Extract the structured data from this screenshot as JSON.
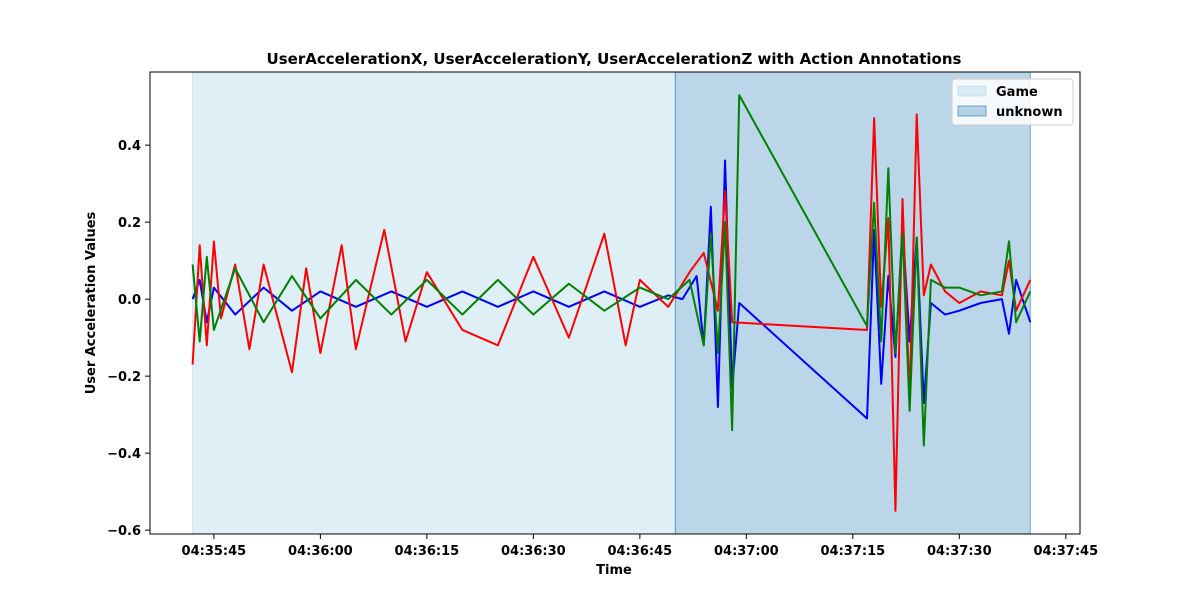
{
  "chart_data": {
    "type": "line",
    "title": "UserAccelerationX, UserAccelerationY, UserAccelerationZ with Action Annotations",
    "xlabel": "Time",
    "ylabel": "User Acceleration Values",
    "x_ticks": [
      "04:35:45",
      "04:36:00",
      "04:36:15",
      "04:36:30",
      "04:36:45",
      "04:37:00",
      "04:37:15",
      "04:37:30",
      "04:37:45"
    ],
    "y_ticks": [
      "0.4",
      "0.2",
      "0.0",
      "−0.2",
      "−0.4",
      "−0.6"
    ],
    "xlim": [
      "04:35:36",
      "04:37:47"
    ],
    "ylim": [
      -0.61,
      0.59
    ],
    "grid": false,
    "legend_position": "top-right",
    "legend": [
      {
        "label": "Game",
        "color": "#add8e6",
        "alpha": 0.4
      },
      {
        "label": "unknown",
        "color": "#1f77b4",
        "alpha": 0.3
      }
    ],
    "annotations": [
      {
        "label": "Game",
        "start": "04:35:42",
        "end": "04:36:50"
      },
      {
        "label": "unknown",
        "start": "04:36:50",
        "end": "04:37:40"
      }
    ],
    "series": [
      {
        "color": "#0000ff",
        "points": [
          [
            "04:35:42",
            0.0
          ],
          [
            "04:35:43",
            0.05
          ],
          [
            "04:35:44",
            -0.06
          ],
          [
            "04:35:45",
            0.03
          ],
          [
            "04:35:48",
            -0.04
          ],
          [
            "04:35:52",
            0.03
          ],
          [
            "04:35:56",
            -0.03
          ],
          [
            "04:36:00",
            0.02
          ],
          [
            "04:36:05",
            -0.02
          ],
          [
            "04:36:10",
            0.02
          ],
          [
            "04:36:15",
            -0.02
          ],
          [
            "04:36:20",
            0.02
          ],
          [
            "04:36:25",
            -0.02
          ],
          [
            "04:36:30",
            0.02
          ],
          [
            "04:36:35",
            -0.02
          ],
          [
            "04:36:40",
            0.02
          ],
          [
            "04:36:45",
            -0.02
          ],
          [
            "04:36:49",
            0.01
          ],
          [
            "04:36:51",
            0.0
          ],
          [
            "04:36:53",
            0.06
          ],
          [
            "04:36:54",
            -0.12
          ],
          [
            "04:36:55",
            0.24
          ],
          [
            "04:36:56",
            -0.28
          ],
          [
            "04:36:57",
            0.36
          ],
          [
            "04:36:58",
            -0.23
          ],
          [
            "04:36:59",
            -0.01
          ],
          [
            "04:37:17",
            -0.31
          ],
          [
            "04:37:18",
            0.18
          ],
          [
            "04:37:19",
            -0.22
          ],
          [
            "04:37:20",
            0.06
          ],
          [
            "04:37:21",
            -0.15
          ],
          [
            "04:37:22",
            0.19
          ],
          [
            "04:37:23",
            -0.11
          ],
          [
            "04:37:24",
            0.16
          ],
          [
            "04:37:25",
            -0.27
          ],
          [
            "04:37:26",
            -0.01
          ],
          [
            "04:37:28",
            -0.04
          ],
          [
            "04:37:30",
            -0.03
          ],
          [
            "04:37:33",
            -0.01
          ],
          [
            "04:37:36",
            0.0
          ],
          [
            "04:37:37",
            -0.09
          ],
          [
            "04:37:38",
            0.05
          ],
          [
            "04:37:40",
            -0.06
          ]
        ]
      },
      {
        "color": "#ff0000",
        "points": [
          [
            "04:35:42",
            -0.17
          ],
          [
            "04:35:43",
            0.14
          ],
          [
            "04:35:44",
            -0.12
          ],
          [
            "04:35:45",
            0.15
          ],
          [
            "04:35:46",
            -0.05
          ],
          [
            "04:35:48",
            0.09
          ],
          [
            "04:35:50",
            -0.13
          ],
          [
            "04:35:52",
            0.09
          ],
          [
            "04:35:56",
            -0.19
          ],
          [
            "04:35:58",
            0.08
          ],
          [
            "04:36:00",
            -0.14
          ],
          [
            "04:36:03",
            0.14
          ],
          [
            "04:36:05",
            -0.13
          ],
          [
            "04:36:09",
            0.18
          ],
          [
            "04:36:12",
            -0.11
          ],
          [
            "04:36:15",
            0.07
          ],
          [
            "04:36:20",
            -0.08
          ],
          [
            "04:36:25",
            -0.12
          ],
          [
            "04:36:30",
            0.11
          ],
          [
            "04:36:35",
            -0.1
          ],
          [
            "04:36:40",
            0.17
          ],
          [
            "04:36:43",
            -0.12
          ],
          [
            "04:36:45",
            0.05
          ],
          [
            "04:36:49",
            -0.02
          ],
          [
            "04:36:52",
            0.07
          ],
          [
            "04:36:54",
            0.12
          ],
          [
            "04:36:56",
            -0.03
          ],
          [
            "04:36:57",
            0.28
          ],
          [
            "04:36:58",
            -0.06
          ],
          [
            "04:37:17",
            -0.08
          ],
          [
            "04:37:18",
            0.47
          ],
          [
            "04:37:19",
            -0.02
          ],
          [
            "04:37:20",
            0.21
          ],
          [
            "04:37:21",
            -0.55
          ],
          [
            "04:37:22",
            0.26
          ],
          [
            "04:37:23",
            -0.26
          ],
          [
            "04:37:24",
            0.48
          ],
          [
            "04:37:25",
            0.01
          ],
          [
            "04:37:26",
            0.09
          ],
          [
            "04:37:28",
            0.02
          ],
          [
            "04:37:30",
            -0.01
          ],
          [
            "04:37:33",
            0.02
          ],
          [
            "04:37:36",
            0.01
          ],
          [
            "04:37:37",
            0.1
          ],
          [
            "04:37:38",
            -0.03
          ],
          [
            "04:37:40",
            0.05
          ]
        ]
      },
      {
        "color": "#008000",
        "points": [
          [
            "04:35:42",
            0.09
          ],
          [
            "04:35:43",
            -0.11
          ],
          [
            "04:35:44",
            0.11
          ],
          [
            "04:35:45",
            -0.08
          ],
          [
            "04:35:48",
            0.08
          ],
          [
            "04:35:52",
            -0.06
          ],
          [
            "04:35:56",
            0.06
          ],
          [
            "04:36:00",
            -0.05
          ],
          [
            "04:36:05",
            0.05
          ],
          [
            "04:36:10",
            -0.04
          ],
          [
            "04:36:15",
            0.05
          ],
          [
            "04:36:20",
            -0.04
          ],
          [
            "04:36:25",
            0.05
          ],
          [
            "04:36:30",
            -0.04
          ],
          [
            "04:36:35",
            0.04
          ],
          [
            "04:36:40",
            -0.03
          ],
          [
            "04:36:45",
            0.03
          ],
          [
            "04:36:49",
            0.0
          ],
          [
            "04:36:52",
            0.05
          ],
          [
            "04:36:54",
            -0.12
          ],
          [
            "04:36:55",
            0.17
          ],
          [
            "04:36:56",
            -0.14
          ],
          [
            "04:36:57",
            0.2
          ],
          [
            "04:36:58",
            -0.34
          ],
          [
            "04:36:59",
            0.53
          ],
          [
            "04:37:17",
            -0.07
          ],
          [
            "04:37:18",
            0.25
          ],
          [
            "04:37:19",
            -0.11
          ],
          [
            "04:37:20",
            0.34
          ],
          [
            "04:37:21",
            -0.14
          ],
          [
            "04:37:22",
            0.17
          ],
          [
            "04:37:23",
            -0.29
          ],
          [
            "04:37:24",
            0.16
          ],
          [
            "04:37:25",
            -0.38
          ],
          [
            "04:37:26",
            0.05
          ],
          [
            "04:37:28",
            0.03
          ],
          [
            "04:37:30",
            0.03
          ],
          [
            "04:37:33",
            0.01
          ],
          [
            "04:37:36",
            0.02
          ],
          [
            "04:37:37",
            0.15
          ],
          [
            "04:37:38",
            -0.06
          ],
          [
            "04:37:40",
            0.02
          ]
        ]
      }
    ]
  }
}
